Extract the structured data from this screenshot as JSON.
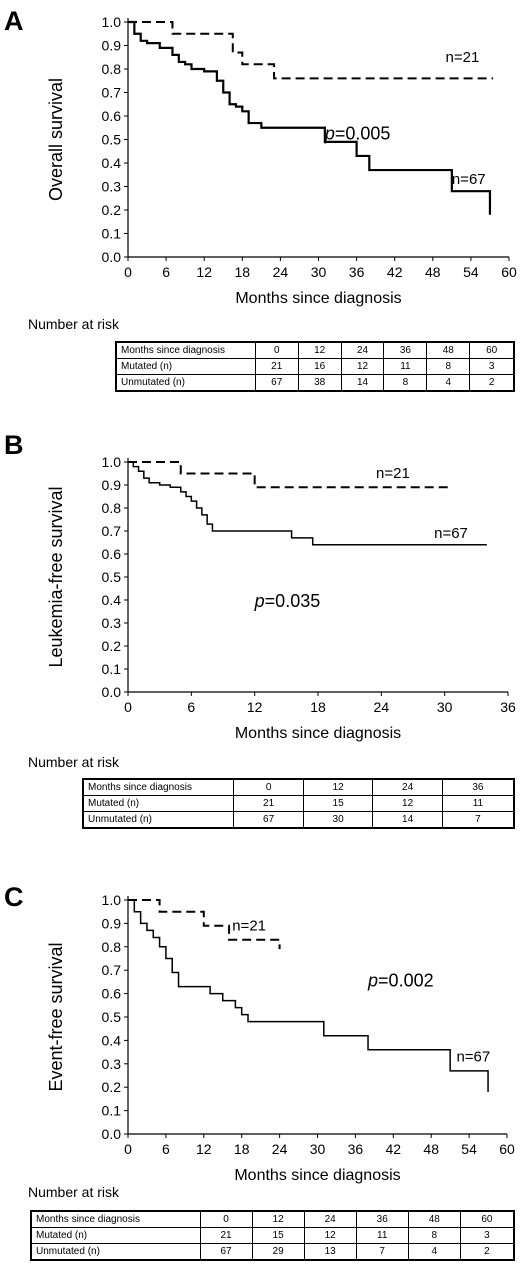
{
  "chart_data": [
    {
      "type": "line",
      "panel_label": "A",
      "ylabel": "Overall survival",
      "xlabel": "Months since diagnosis",
      "xlim": [
        0,
        60
      ],
      "ylim": [
        0,
        1
      ],
      "xticks": [
        0,
        6,
        12,
        18,
        24,
        30,
        36,
        42,
        48,
        54,
        60
      ],
      "yticks": [
        0.0,
        0.1,
        0.2,
        0.3,
        0.4,
        0.5,
        0.6,
        0.7,
        0.8,
        0.9,
        1.0
      ],
      "grid": false,
      "series": [
        {
          "name": "n=21",
          "style": "dashed",
          "x": [
            0,
            7,
            16.5,
            18,
            23,
            57.5
          ],
          "y": [
            1.0,
            0.95,
            0.87,
            0.82,
            0.76,
            0.76
          ]
        },
        {
          "name": "n=67",
          "style": "solid",
          "x": [
            0,
            1,
            2,
            3,
            5,
            7,
            8,
            9,
            10,
            12,
            14,
            15,
            16,
            17,
            18,
            19,
            21,
            24,
            31,
            36,
            38,
            51,
            57
          ],
          "y": [
            1.0,
            0.95,
            0.92,
            0.91,
            0.89,
            0.86,
            0.83,
            0.82,
            0.8,
            0.79,
            0.75,
            0.7,
            0.65,
            0.64,
            0.62,
            0.57,
            0.55,
            0.55,
            0.49,
            0.43,
            0.37,
            0.28,
            0.18
          ]
        }
      ],
      "annotations": {
        "p_letter": "p",
        "p_value": "=0.005",
        "n_top": "n=21",
        "n_bottom": "n=67"
      },
      "risk_table": {
        "title": "Number at risk",
        "rows": [
          [
            "Months since diagnosis",
            "0",
            "12",
            "24",
            "36",
            "48",
            "60"
          ],
          [
            "Mutated (n)",
            "21",
            "16",
            "12",
            "11",
            "8",
            "3"
          ],
          [
            "Unmutated (n)",
            "67",
            "38",
            "14",
            "8",
            "4",
            "2"
          ]
        ]
      }
    },
    {
      "type": "line",
      "panel_label": "B",
      "ylabel": "Leukemia-free survival",
      "xlabel": "Months since diagnosis",
      "xlim": [
        0,
        36
      ],
      "ylim": [
        0,
        1
      ],
      "xticks": [
        0,
        6,
        12,
        18,
        24,
        30,
        36
      ],
      "yticks": [
        0.0,
        0.1,
        0.2,
        0.3,
        0.4,
        0.5,
        0.6,
        0.7,
        0.8,
        0.9,
        1.0
      ],
      "grid": false,
      "series": [
        {
          "name": "n=21",
          "style": "dashed",
          "x": [
            0,
            5,
            12,
            30.5
          ],
          "y": [
            1.0,
            0.95,
            0.89,
            0.89
          ]
        },
        {
          "name": "n=67",
          "style": "solid",
          "x": [
            0,
            0.5,
            1,
            1.5,
            2,
            3,
            4,
            5,
            5.5,
            6,
            6.5,
            7,
            7.5,
            8,
            15.5,
            17.5,
            34
          ],
          "y": [
            1.0,
            0.98,
            0.96,
            0.93,
            0.91,
            0.9,
            0.89,
            0.87,
            0.85,
            0.83,
            0.8,
            0.77,
            0.73,
            0.7,
            0.67,
            0.64,
            0.64
          ]
        }
      ],
      "annotations": {
        "p_letter": "p",
        "p_value": "=0.035",
        "n_top": "n=21",
        "n_bottom": "n=67"
      },
      "risk_table": {
        "title": "Number at risk",
        "rows": [
          [
            "Months since diagnosis",
            "0",
            "12",
            "24",
            "36"
          ],
          [
            "Mutated (n)",
            "21",
            "15",
            "12",
            "11"
          ],
          [
            "Unmutated (n)",
            "67",
            "30",
            "14",
            "7"
          ]
        ]
      }
    },
    {
      "type": "line",
      "panel_label": "C",
      "ylabel": "Event-free survival",
      "xlabel": "Months since diagnosis",
      "xlim": [
        0,
        60
      ],
      "ylim": [
        0,
        1
      ],
      "xticks": [
        0,
        6,
        12,
        18,
        24,
        30,
        36,
        42,
        48,
        54,
        60
      ],
      "yticks": [
        0.0,
        0.1,
        0.2,
        0.3,
        0.4,
        0.5,
        0.6,
        0.7,
        0.8,
        0.9,
        1.0
      ],
      "grid": false,
      "series": [
        {
          "name": "n=21",
          "style": "dashed",
          "x": [
            0,
            5,
            12,
            16,
            24
          ],
          "y": [
            1.0,
            0.95,
            0.89,
            0.83,
            0.79
          ]
        },
        {
          "name": "n=67",
          "style": "solid",
          "x": [
            0,
            1,
            2,
            3,
            4,
            5,
            6,
            7,
            8,
            13,
            15,
            17,
            18,
            19,
            31,
            38,
            51,
            57
          ],
          "y": [
            1.0,
            0.95,
            0.9,
            0.87,
            0.84,
            0.8,
            0.75,
            0.69,
            0.63,
            0.6,
            0.57,
            0.54,
            0.51,
            0.48,
            0.42,
            0.36,
            0.27,
            0.18
          ]
        }
      ],
      "annotations": {
        "p_letter": "p",
        "p_value": "=0.002",
        "n_top": "n=21",
        "n_bottom": "n=67"
      },
      "risk_table": {
        "title": "Number at risk",
        "rows": [
          [
            "Months since diagnosis",
            "0",
            "12",
            "24",
            "36",
            "48",
            "60"
          ],
          [
            "Mutated (n)",
            "21",
            "15",
            "12",
            "11",
            "8",
            "3"
          ],
          [
            "Unmutated (n)",
            "67",
            "29",
            "13",
            "7",
            "4",
            "2"
          ]
        ]
      }
    }
  ]
}
